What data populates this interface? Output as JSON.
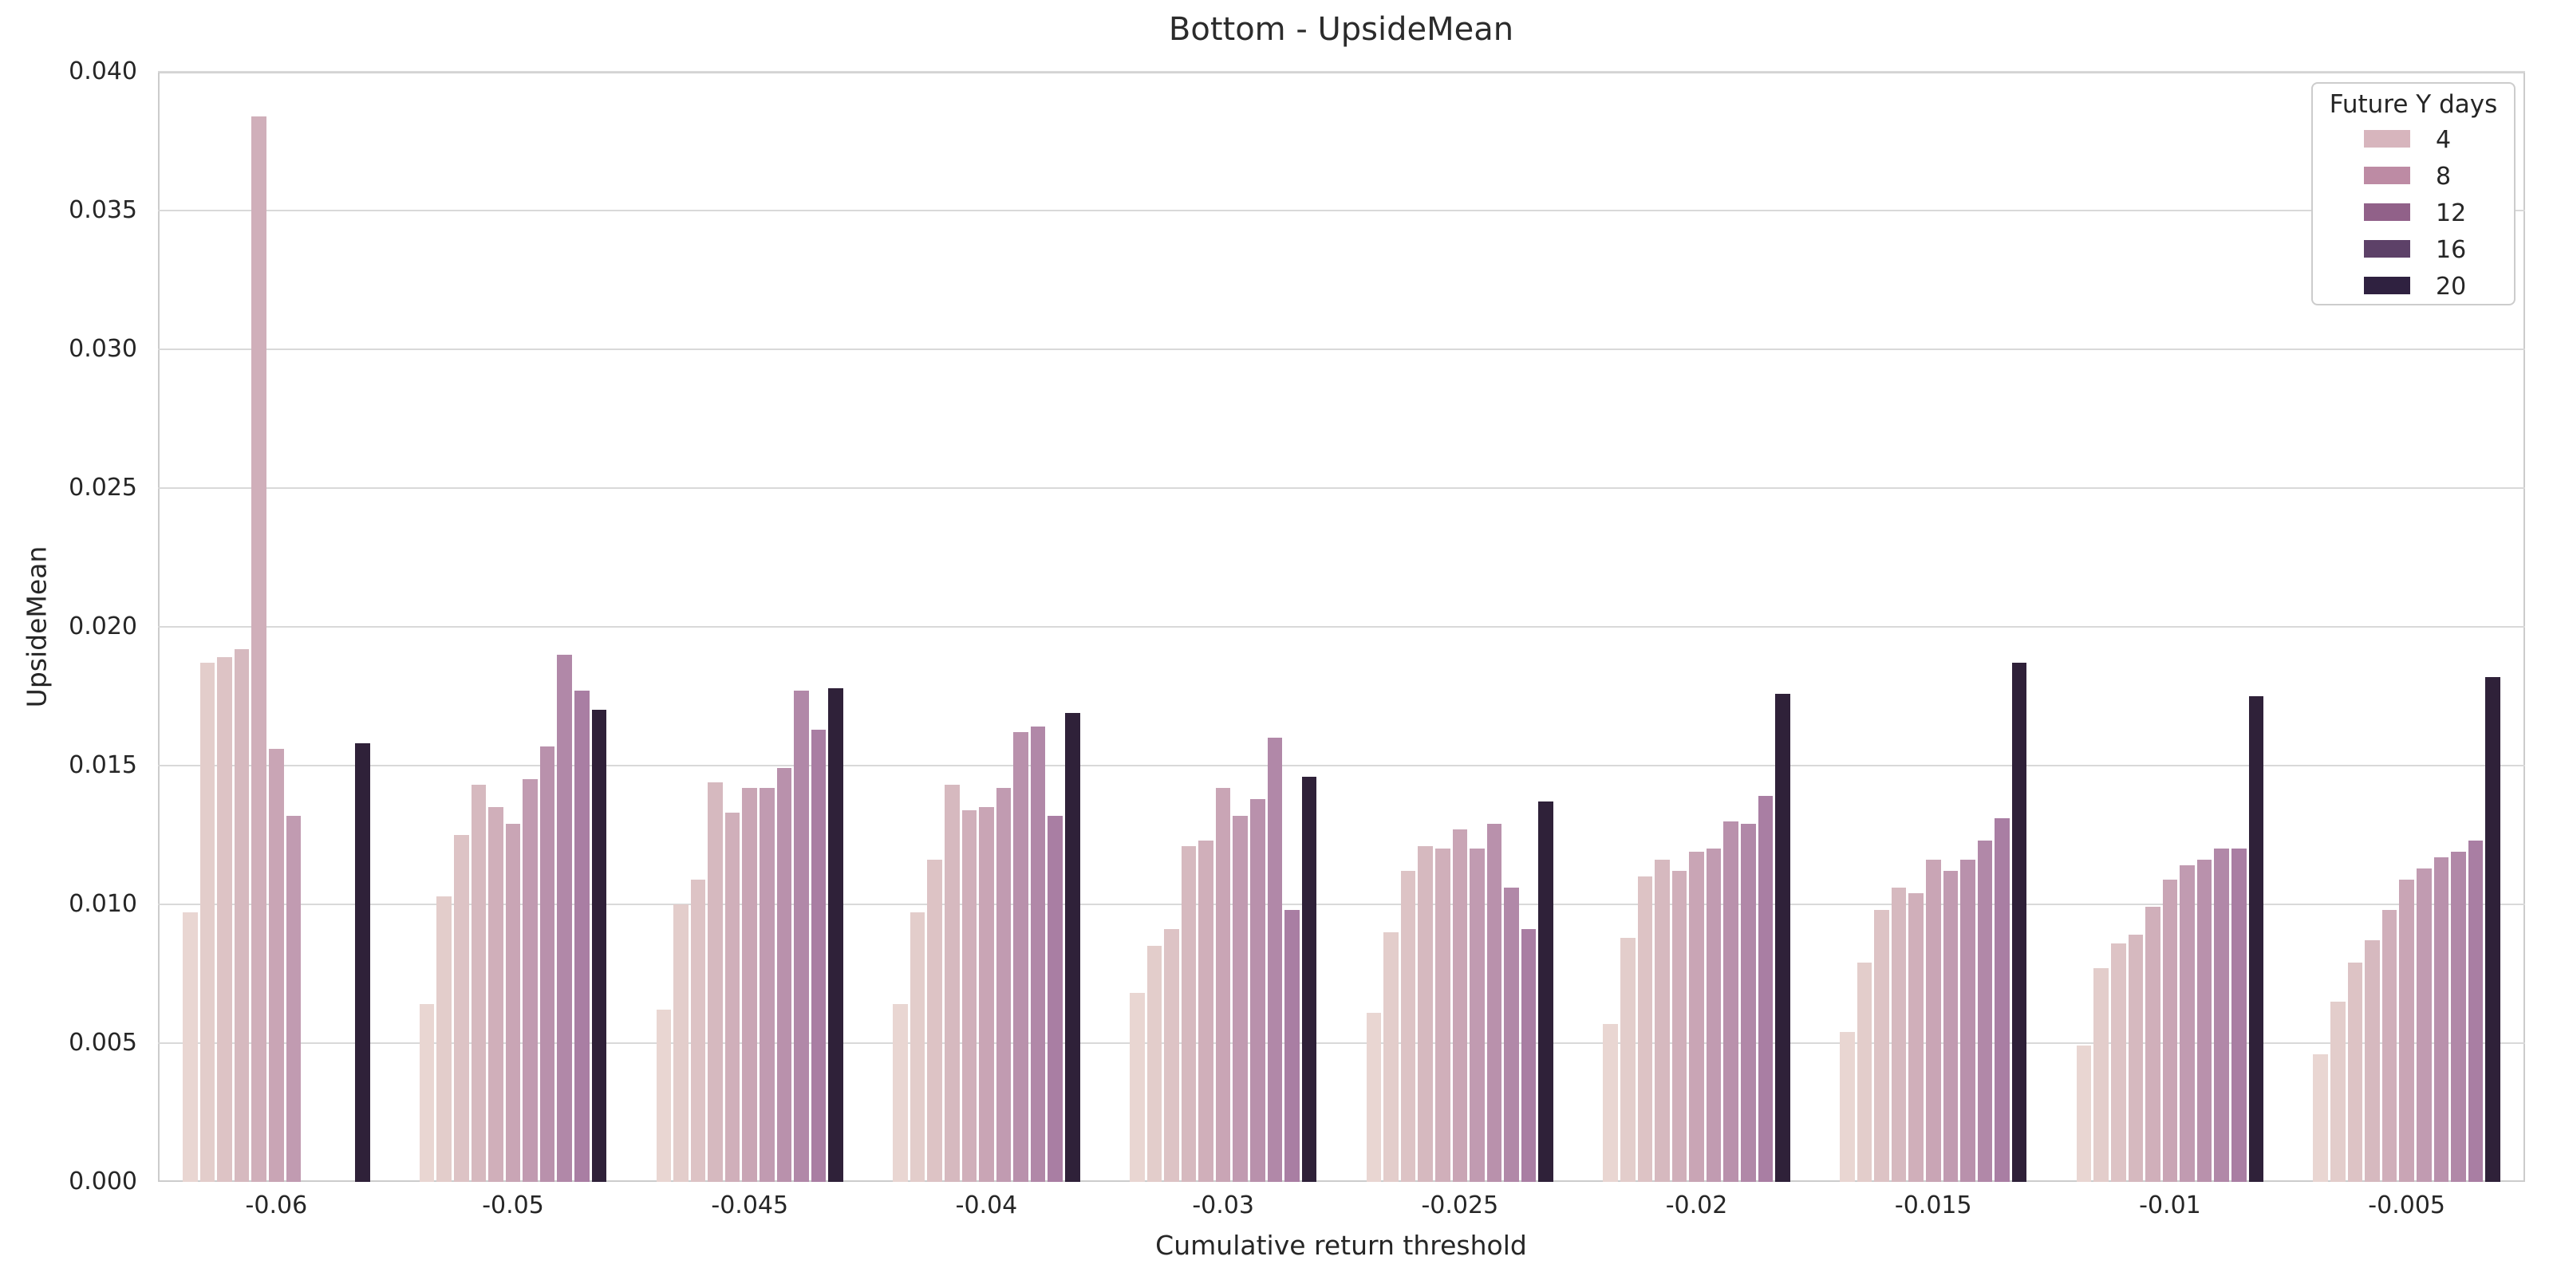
{
  "title": "Bottom - UpsideMean",
  "axes": {
    "x_label": "Cumulative return threshold",
    "y_label": "UpsideMean",
    "y_ticks": [
      "0.000",
      "0.005",
      "0.010",
      "0.015",
      "0.020",
      "0.025",
      "0.030",
      "0.035",
      "0.040"
    ],
    "x_ticks": [
      "-0.06",
      "-0.05",
      "-0.045",
      "-0.04",
      "-0.03",
      "-0.025",
      "-0.02",
      "-0.015",
      "-0.01",
      "-0.005"
    ]
  },
  "legend": {
    "title": "Future Y days",
    "entries": [
      {
        "label": "4",
        "color": "#d7b5bd"
      },
      {
        "label": "8",
        "color": "#bd8ba4"
      },
      {
        "label": "12",
        "color": "#916189"
      },
      {
        "label": "16",
        "color": "#5d4168"
      },
      {
        "label": "20",
        "color": "#2f2140"
      }
    ]
  },
  "chart_data": {
    "type": "bar",
    "title": "Bottom - UpsideMean",
    "xlabel": "Cumulative return threshold",
    "ylabel": "UpsideMean",
    "ylim": [
      0,
      0.04
    ],
    "grid": true,
    "legend_position": "upper right",
    "legend_title": "Future Y days",
    "legend_hue_ticks": [
      4,
      8,
      12,
      16,
      20
    ],
    "categories": [
      "-0.06",
      "-0.05",
      "-0.045",
      "-0.04",
      "-0.03",
      "-0.025",
      "-0.02",
      "-0.015",
      "-0.01",
      "-0.005"
    ],
    "series": [
      {
        "name": "hue-slot-1",
        "color": "#e9d6d2",
        "values": [
          0.0097,
          0.0064,
          0.0062,
          0.0064,
          0.0068,
          0.0061,
          0.0057,
          0.0054,
          0.0049,
          0.0046
        ]
      },
      {
        "name": "hue-slot-2",
        "color": "#e3cdcb",
        "values": [
          0.0187,
          0.0103,
          0.01,
          0.0097,
          0.0085,
          0.009,
          0.0088,
          0.0079,
          0.0077,
          0.0065
        ]
      },
      {
        "name": "hue-slot-3",
        "color": "#ddc3c5",
        "values": [
          0.0189,
          0.0125,
          0.0109,
          0.0116,
          0.0091,
          0.0112,
          0.011,
          0.0098,
          0.0086,
          0.0079
        ]
      },
      {
        "name": "hue-slot-4",
        "color": "#d6b9bf",
        "values": [
          0.0192,
          0.0143,
          0.0144,
          0.0143,
          0.0121,
          0.0121,
          0.0116,
          0.0106,
          0.0089,
          0.0087
        ]
      },
      {
        "name": "hue-slot-5",
        "color": "#d0afba",
        "values": [
          0.0384,
          0.0135,
          0.0133,
          0.0134,
          0.0123,
          0.012,
          0.0112,
          0.0104,
          0.0099,
          0.0098
        ]
      },
      {
        "name": "hue-slot-6",
        "color": "#c9a5b5",
        "values": [
          0.0156,
          0.0129,
          0.0142,
          0.0135,
          0.0142,
          0.0127,
          0.0119,
          0.0116,
          0.0109,
          0.0109
        ]
      },
      {
        "name": "hue-slot-7",
        "color": "#c19bb1",
        "values": [
          0.0132,
          0.0145,
          0.0142,
          0.0142,
          0.0132,
          0.012,
          0.012,
          0.0112,
          0.0114,
          0.0113
        ]
      },
      {
        "name": "hue-slot-8",
        "color": "#b991ac",
        "values": [
          null,
          0.0157,
          0.0149,
          0.0162,
          0.0138,
          0.0129,
          0.013,
          0.0116,
          0.0116,
          0.0117
        ]
      },
      {
        "name": "hue-slot-9",
        "color": "#b188a8",
        "values": [
          null,
          0.019,
          0.0177,
          0.0164,
          0.016,
          0.0106,
          0.0129,
          0.0123,
          0.012,
          0.0119
        ]
      },
      {
        "name": "hue-slot-10",
        "color": "#a97ea3",
        "values": [
          null,
          0.0177,
          0.0163,
          0.0132,
          0.0098,
          0.0091,
          0.0139,
          0.0131,
          0.012,
          0.0123
        ]
      },
      {
        "name": "hue-slot-11",
        "color": "#2f2139",
        "values": [
          0.0158,
          0.017,
          0.0178,
          0.0169,
          0.0146,
          0.0137,
          0.0176,
          0.0187,
          0.0175,
          0.0182
        ]
      }
    ]
  }
}
